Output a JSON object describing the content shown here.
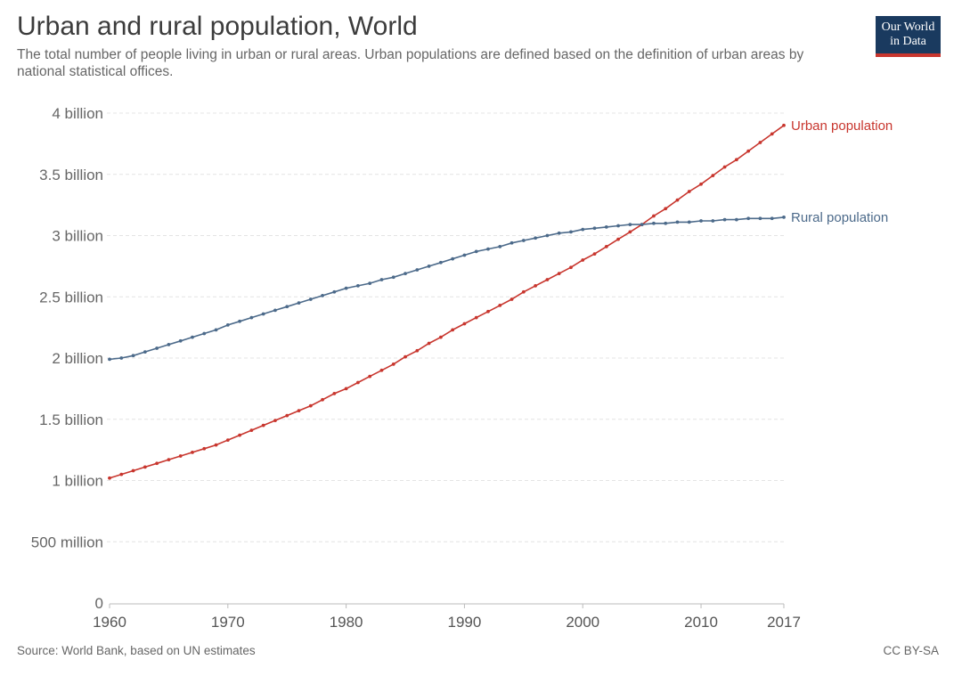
{
  "chart_data": {
    "type": "line",
    "title": "Urban and rural population, World",
    "subtitle": "The total number of people living in urban or rural areas. Urban populations are defined based on the definition of urban areas by national statistical offices.",
    "source": "Source: World Bank, based on UN estimates",
    "license": "CC BY-SA",
    "logo_text": [
      "Our World",
      "in Data"
    ],
    "x_ticks": [
      "1960",
      "1970",
      "1980",
      "1990",
      "2000",
      "2010",
      "2017"
    ],
    "x_tick_values": [
      1960,
      1970,
      1980,
      1990,
      2000,
      2010,
      2017
    ],
    "y_ticks": [
      "0",
      "500 million",
      "1 billion",
      "1.5 billion",
      "2 billion",
      "2.5 billion",
      "3 billion",
      "3.5 billion",
      "4 billion"
    ],
    "y_tick_values": [
      0,
      0.5,
      1,
      1.5,
      2,
      2.5,
      3,
      3.5,
      4
    ],
    "xlim": [
      1960,
      2017
    ],
    "ylim": [
      0,
      4
    ],
    "y_unit": "billion",
    "grid": "horizontal",
    "x": [
      1960,
      1961,
      1962,
      1963,
      1964,
      1965,
      1966,
      1967,
      1968,
      1969,
      1970,
      1971,
      1972,
      1973,
      1974,
      1975,
      1976,
      1977,
      1978,
      1979,
      1980,
      1981,
      1982,
      1983,
      1984,
      1985,
      1986,
      1987,
      1988,
      1989,
      1990,
      1991,
      1992,
      1993,
      1994,
      1995,
      1996,
      1997,
      1998,
      1999,
      2000,
      2001,
      2002,
      2003,
      2004,
      2005,
      2006,
      2007,
      2008,
      2009,
      2010,
      2011,
      2012,
      2013,
      2014,
      2015,
      2016,
      2017
    ],
    "series": [
      {
        "name": "Urban population",
        "color": "#c8362e",
        "values": [
          1.02,
          1.05,
          1.08,
          1.11,
          1.14,
          1.17,
          1.2,
          1.23,
          1.26,
          1.29,
          1.33,
          1.37,
          1.41,
          1.45,
          1.49,
          1.53,
          1.57,
          1.61,
          1.66,
          1.71,
          1.75,
          1.8,
          1.85,
          1.9,
          1.95,
          2.01,
          2.06,
          2.12,
          2.17,
          2.23,
          2.28,
          2.33,
          2.38,
          2.43,
          2.48,
          2.54,
          2.59,
          2.64,
          2.69,
          2.74,
          2.8,
          2.85,
          2.91,
          2.97,
          3.03,
          3.09,
          3.16,
          3.22,
          3.29,
          3.36,
          3.42,
          3.49,
          3.56,
          3.62,
          3.69,
          3.76,
          3.83,
          3.9
        ]
      },
      {
        "name": "Rural population",
        "color": "#4c6a8a",
        "values": [
          1.99,
          2.0,
          2.02,
          2.05,
          2.08,
          2.11,
          2.14,
          2.17,
          2.2,
          2.23,
          2.27,
          2.3,
          2.33,
          2.36,
          2.39,
          2.42,
          2.45,
          2.48,
          2.51,
          2.54,
          2.57,
          2.59,
          2.61,
          2.64,
          2.66,
          2.69,
          2.72,
          2.75,
          2.78,
          2.81,
          2.84,
          2.87,
          2.89,
          2.91,
          2.94,
          2.96,
          2.98,
          3.0,
          3.02,
          3.03,
          3.05,
          3.06,
          3.07,
          3.08,
          3.09,
          3.09,
          3.1,
          3.1,
          3.11,
          3.11,
          3.12,
          3.12,
          3.13,
          3.13,
          3.14,
          3.14,
          3.14,
          3.15
        ]
      }
    ]
  }
}
